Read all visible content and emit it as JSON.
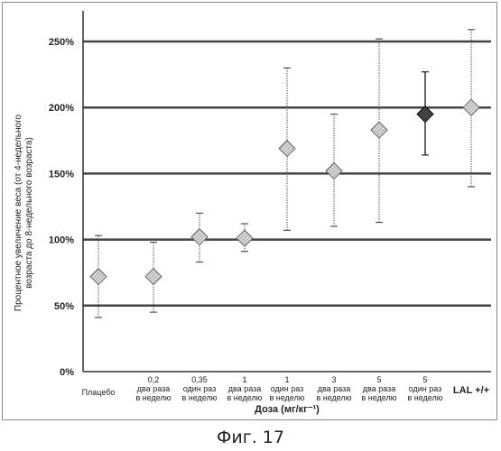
{
  "figure_caption": "Фиг. 17",
  "chart_data": {
    "type": "scatter",
    "xlabel": "Доза (мг/кг⁻¹)",
    "ylabel_lines": [
      "Процентное увеличение веса (от 4-недельного",
      "возраста до 8-недельного возраста)"
    ],
    "ylim": [
      0,
      250
    ],
    "y_ticks": [
      0,
      50,
      100,
      150,
      200,
      250
    ],
    "y_tick_labels": [
      "0%",
      "50%",
      "100%",
      "150%",
      "200%",
      "250%"
    ],
    "grid": "horizontal",
    "categories": [
      {
        "lines": [
          "Плацебо"
        ]
      },
      {
        "lines": [
          "0,2",
          "два раза",
          "в неделю"
        ]
      },
      {
        "lines": [
          "0,35",
          "один раз",
          "в неделю"
        ]
      },
      {
        "lines": [
          "1",
          "два раза",
          "в неделю"
        ]
      },
      {
        "lines": [
          "1",
          "один раз",
          "в неделю"
        ]
      },
      {
        "lines": [
          "3",
          "два раза",
          "в неделю"
        ]
      },
      {
        "lines": [
          "5",
          "два раза",
          "в неделю"
        ]
      },
      {
        "lines": [
          "5",
          "один раз",
          "в неделю"
        ]
      },
      {
        "lines": [
          "LAL +/+"
        ],
        "bold": true
      }
    ],
    "points": [
      {
        "y": 72,
        "low": 41,
        "high": 103,
        "dark": false
      },
      {
        "y": 72,
        "low": 45,
        "high": 98,
        "dark": false
      },
      {
        "y": 102,
        "low": 83,
        "high": 120,
        "dark": false
      },
      {
        "y": 101,
        "low": 91,
        "high": 112,
        "dark": false
      },
      {
        "y": 169,
        "low": 107,
        "high": 230,
        "dark": false
      },
      {
        "y": 152,
        "low": 110,
        "high": 195,
        "dark": false
      },
      {
        "y": 183,
        "low": 113,
        "high": 252,
        "dark": false
      },
      {
        "y": 195,
        "low": 164,
        "high": 227,
        "dark": true
      },
      {
        "y": 200,
        "low": 140,
        "high": 259,
        "dark": false
      }
    ],
    "colors": {
      "marker_light": "#c8c8c8",
      "marker_dark": "#3a3a3a",
      "grid": "#444444",
      "errorbar": "#555555"
    }
  }
}
